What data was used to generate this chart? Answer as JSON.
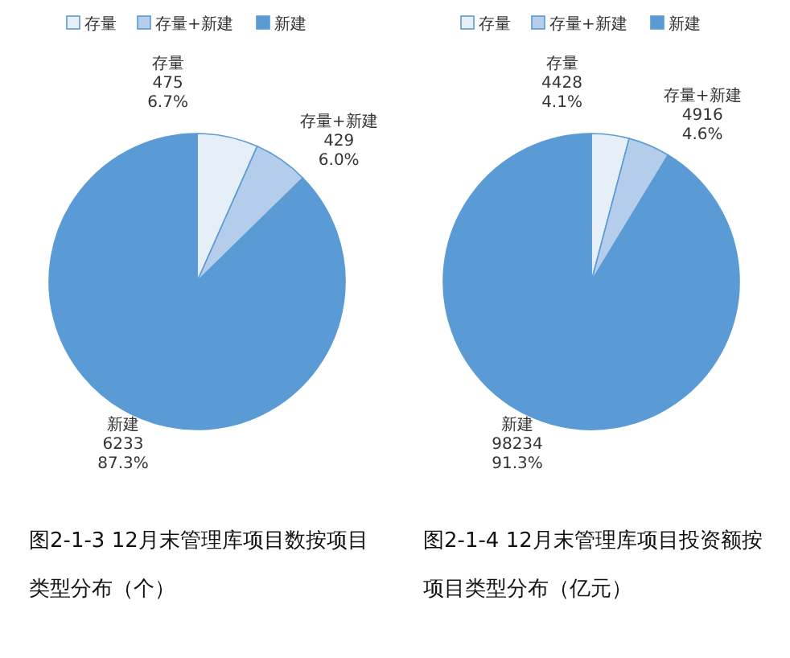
{
  "chart_data": [
    {
      "type": "pie",
      "title": "图2-1-3 12月末管理库项目数按项目类型分布（个）",
      "legend": "top",
      "categories": [
        "存量",
        "存量+新建",
        "新建"
      ],
      "values": [
        475,
        429,
        6233
      ],
      "value_labels": [
        "475\n6.7%",
        "429\n6.0%",
        "6233\n87.3%"
      ],
      "colors": [
        "#e6eff8",
        "#b3cdea",
        "#5b9bd5"
      ]
    },
    {
      "type": "pie",
      "title": "图2-1-4 12月末管理库项目投资额按项目类型分布（亿元）",
      "legend": "top",
      "categories": [
        "存量",
        "存量+新建",
        "新建"
      ],
      "values": [
        4428,
        4916,
        98234
      ],
      "value_labels": [
        "4428\n4.1%",
        "4916\n4.6%",
        "98234\n91.3%"
      ],
      "colors": [
        "#e6eff8",
        "#b3cdea",
        "#5b9bd5"
      ]
    }
  ]
}
